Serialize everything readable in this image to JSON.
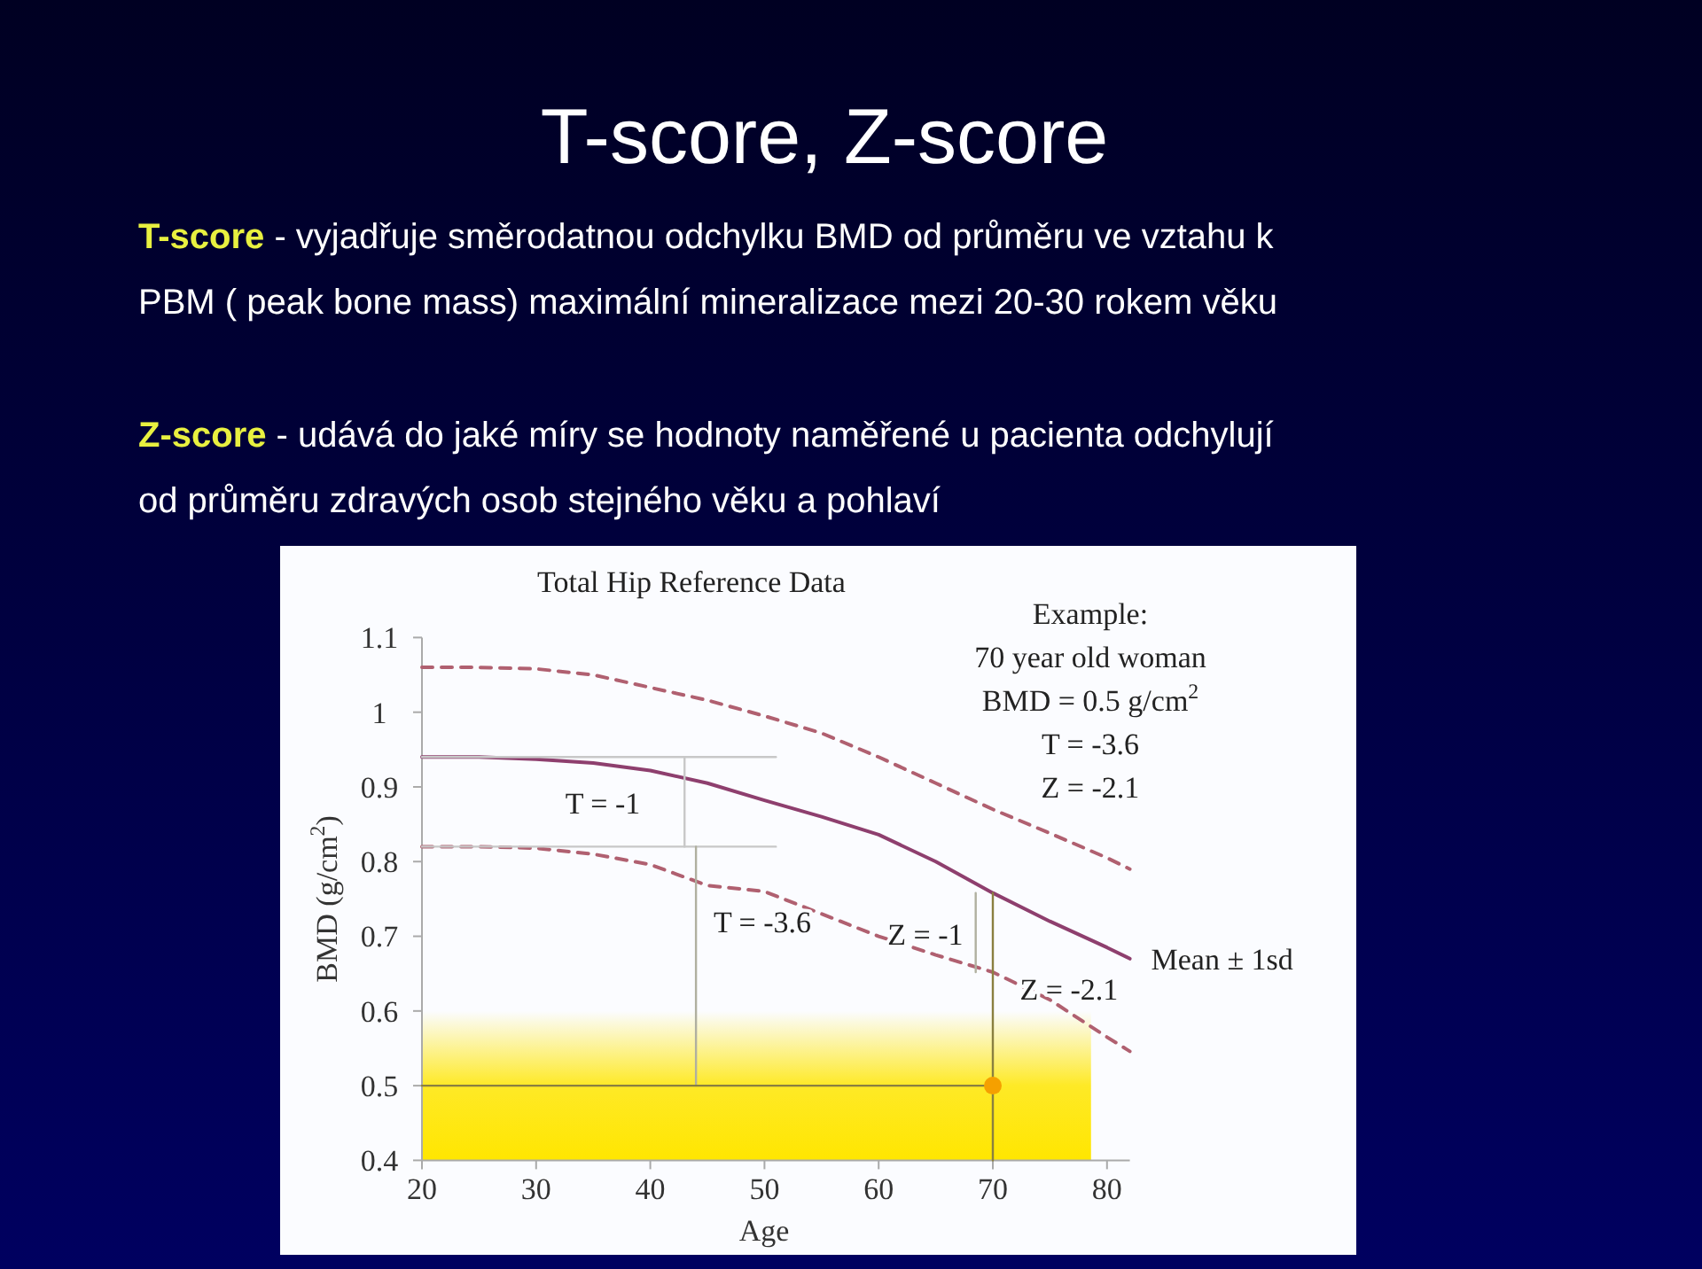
{
  "chart_data": {
    "type": "line",
    "title": "T-score, Z-score",
    "subtitle": "Total Hip Reference Data",
    "xlabel": "Age",
    "ylabel": "BMD (g/cm$^{2}$)",
    "xlim": [
      20,
      82
    ],
    "xticks": [
      20,
      30,
      40,
      50,
      60,
      70,
      80
    ],
    "ylim": [
      0.4,
      1.1
    ],
    "yticks": [
      0.4,
      0.5,
      0.6,
      0.7,
      0.8,
      0.9,
      1,
      1.1
    ],
    "grid": false,
    "bands": [
      {
        "axis": "y",
        "from": 0.4,
        "to": 0.6,
        "color": "#ffe600"
      }
    ],
    "series": [
      {
        "color": "#8e3f6e",
        "line_style": "solid",
        "x": [
          20,
          25,
          30,
          35,
          40,
          45,
          50,
          55,
          60,
          65,
          70,
          75,
          80,
          82
        ],
        "values": [
          0.94,
          0.94,
          0.937,
          0.932,
          0.922,
          0.905,
          0.882,
          0.86,
          0.836,
          0.8,
          0.758,
          0.72,
          0.685,
          0.67
        ]
      },
      {
        "color": "#b06070",
        "line_style": "dashed",
        "x": [
          20,
          25,
          30,
          35,
          40,
          45,
          50,
          55,
          60,
          65,
          70,
          75,
          80,
          82
        ],
        "values": [
          1.06,
          1.06,
          1.058,
          1.05,
          1.033,
          1.016,
          0.995,
          0.972,
          0.94,
          0.905,
          0.87,
          0.838,
          0.805,
          0.79
        ]
      },
      {
        "color": "#b06070",
        "line_style": "dashed",
        "x": [
          20,
          25,
          30,
          35,
          40,
          45,
          50,
          55,
          60,
          65,
          70,
          75,
          80,
          82
        ],
        "values": [
          0.82,
          0.82,
          0.818,
          0.81,
          0.796,
          0.768,
          0.76,
          0.73,
          0.7,
          0.675,
          0.652,
          0.615,
          0.565,
          0.546
        ]
      },
      {
        "color": "#c8c8c8",
        "line_style": "solid",
        "x": [
          20,
          51
        ],
        "values": [
          0.94,
          0.94
        ]
      },
      {
        "color": "#c8c8c8",
        "line_style": "solid",
        "x": [
          20,
          51
        ],
        "values": [
          0.82,
          0.82
        ]
      },
      {
        "color": "#c8c8c8",
        "line_style": "solid",
        "x": [
          43,
          43
        ],
        "values": [
          0.94,
          0.82
        ]
      },
      {
        "color": "#b0b0a0",
        "line_style": "solid",
        "x": [
          44,
          44
        ],
        "values": [
          0.82,
          0.5
        ]
      },
      {
        "color": "#b0b0a0",
        "line_style": "solid",
        "x": [
          68.5,
          68.5
        ],
        "values": [
          0.758,
          0.652
        ]
      },
      {
        "color": "#8a8040",
        "line_style": "solid",
        "x": [
          20,
          70
        ],
        "values": [
          0.5,
          0.5
        ]
      },
      {
        "color": "#8a8040",
        "line_style": "solid",
        "x": [
          70,
          70
        ],
        "values": [
          0.4,
          0.758
        ]
      },
      {
        "type": "scatter",
        "marker": "circle",
        "color": "#f5a000",
        "x": [
          70
        ],
        "values": [
          0.5
        ]
      }
    ],
    "annotations": [
      "T-score - vyjadřuje směrodatnou odchylku BMD od průměru ve vztahu k\nPBM ( peak bone  mass) maximální  mineralizace mezi 20-30  rokem věku",
      "Z-score - udává do jaké míry se hodnoty naměřené u pacienta odchylují\nod průměru zdravých osob stejného věku a pohlaví",
      "Example:\n70 year old woman\nBMD = 0.5 g/cm$^{2}$\nT = -3.6\nZ = -2.1",
      "T = -1",
      "T = -3.6",
      "Z = -1",
      "Z = -2.1",
      {
        "text": "Mean ± 1sd",
        "x": 82,
        "y": 0.67
      }
    ]
  }
}
